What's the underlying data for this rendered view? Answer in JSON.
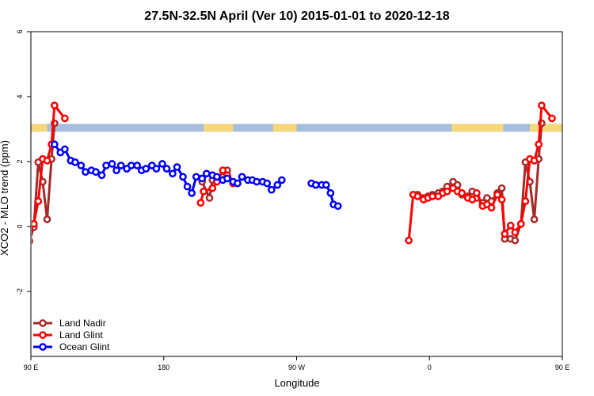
{
  "chart_data": {
    "type": "line",
    "title": "27.5N-32.5N April (Ver 10)   2015-01-01 to 2020-12-18",
    "xlabel": "Longitude",
    "ylabel": "XCO2 - MLO trend (ppm)",
    "xlim": [
      90,
      450
    ],
    "ylim": [
      -4,
      6
    ],
    "x_ticks": [
      {
        "value": 90,
        "label": "90 E"
      },
      {
        "value": 180,
        "label": "180"
      },
      {
        "value": 270,
        "label": "90 W"
      },
      {
        "value": 360,
        "label": "0"
      },
      {
        "value": 450,
        "label": "90 E"
      },
      {
        "value": 540,
        "label": "180"
      }
    ],
    "y_ticks": [
      {
        "value": -2,
        "label": "-2"
      },
      {
        "value": 0,
        "label": "0"
      },
      {
        "value": 2,
        "label": "2"
      },
      {
        "value": 4,
        "label": "4"
      },
      {
        "value": 6,
        "label": "6"
      }
    ],
    "grid": false,
    "legend_position": "bottom-left",
    "land_ocean_strip": {
      "y_range": [
        2.92,
        3.16
      ],
      "ocean_color": "#a5bddc",
      "land_color": "#f5d77c",
      "land_segments": [
        [
          88,
          101
        ],
        [
          207,
          227
        ],
        [
          254,
          270
        ],
        [
          375,
          410
        ],
        [
          428,
          461
        ],
        [
          487,
          506
        ]
      ]
    },
    "series": [
      {
        "name": "Land Nadir",
        "color": "#a52a2a",
        "points": [
          [
            86,
            -0.45
          ],
          [
            89,
            -0.45
          ],
          [
            92,
            -0.02
          ],
          [
            95,
            1.98
          ],
          [
            98,
            1.38
          ],
          [
            101,
            0.22
          ],
          [
            104,
            2.08
          ],
          [
            106,
            3.18
          ],
          [
            206,
            1.38
          ],
          [
            211,
            0.88
          ],
          [
            213,
            1.43
          ],
          [
            216,
            1.43
          ],
          [
            220,
            1.53
          ],
          [
            223,
            1.73
          ],
          [
            227,
            1.33
          ],
          [
            349,
            0.98
          ],
          [
            352,
            0.98
          ],
          [
            356,
            0.88
          ],
          [
            359,
            0.93
          ],
          [
            362,
            0.98
          ],
          [
            366,
            1.03
          ],
          [
            369,
            1.08
          ],
          [
            372,
            1.23
          ],
          [
            376,
            1.38
          ],
          [
            379,
            1.28
          ],
          [
            382,
            0.98
          ],
          [
            386,
            0.93
          ],
          [
            389,
            1.08
          ],
          [
            392,
            0.88
          ],
          [
            396,
            0.73
          ],
          [
            399,
            0.88
          ],
          [
            402,
            0.78
          ],
          [
            406,
            1.03
          ],
          [
            409,
            1.18
          ],
          [
            411,
            -0.38
          ],
          [
            415,
            -0.38
          ],
          [
            418,
            -0.43
          ],
          [
            422,
            0.08
          ],
          [
            425,
            1.98
          ],
          [
            428,
            1.38
          ],
          [
            431,
            0.22
          ],
          [
            434,
            2.08
          ],
          [
            436,
            3.18
          ]
        ]
      },
      {
        "name": "Land Glint",
        "color": "#ff0000",
        "points": [
          [
            86,
            -0.15
          ],
          [
            89,
            -0.05
          ],
          [
            92,
            0.08
          ],
          [
            95,
            0.78
          ],
          [
            98,
            2.08
          ],
          [
            101,
            2.03
          ],
          [
            104,
            2.53
          ],
          [
            106,
            3.73
          ],
          [
            113,
            3.33
          ],
          [
            205,
            0.73
          ],
          [
            207,
            1.08
          ],
          [
            213,
            1.18
          ],
          [
            216,
            1.38
          ],
          [
            220,
            1.73
          ],
          [
            223,
            1.58
          ],
          [
            227,
            1.33
          ],
          [
            346,
            -0.43
          ],
          [
            349,
            0.98
          ],
          [
            352,
            0.93
          ],
          [
            356,
            0.83
          ],
          [
            359,
            0.88
          ],
          [
            362,
            0.93
          ],
          [
            366,
            0.93
          ],
          [
            369,
            1.03
          ],
          [
            372,
            1.08
          ],
          [
            376,
            1.18
          ],
          [
            379,
            1.08
          ],
          [
            382,
            1.03
          ],
          [
            386,
            0.88
          ],
          [
            389,
            0.83
          ],
          [
            392,
            1.03
          ],
          [
            396,
            0.63
          ],
          [
            399,
            0.68
          ],
          [
            402,
            0.58
          ],
          [
            406,
            0.98
          ],
          [
            409,
            0.83
          ],
          [
            411,
            -0.23
          ],
          [
            415,
            0.03
          ],
          [
            418,
            -0.18
          ],
          [
            422,
            0.08
          ],
          [
            425,
            0.78
          ],
          [
            428,
            2.08
          ],
          [
            431,
            2.03
          ],
          [
            434,
            2.53
          ],
          [
            436,
            3.73
          ],
          [
            443,
            3.33
          ]
        ]
      },
      {
        "name": "Ocean Glint",
        "color": "#0000ff",
        "points": [
          [
            106,
            2.53
          ],
          [
            110,
            2.28
          ],
          [
            113,
            2.38
          ],
          [
            117,
            2.03
          ],
          [
            120,
            1.98
          ],
          [
            124,
            1.88
          ],
          [
            127,
            1.68
          ],
          [
            131,
            1.73
          ],
          [
            134,
            1.68
          ],
          [
            138,
            1.58
          ],
          [
            141,
            1.88
          ],
          [
            145,
            1.93
          ],
          [
            148,
            1.73
          ],
          [
            151,
            1.88
          ],
          [
            155,
            1.78
          ],
          [
            158,
            1.88
          ],
          [
            162,
            1.88
          ],
          [
            165,
            1.73
          ],
          [
            168,
            1.78
          ],
          [
            172,
            1.88
          ],
          [
            175,
            1.78
          ],
          [
            179,
            1.93
          ],
          [
            182,
            1.78
          ],
          [
            186,
            1.63
          ],
          [
            189,
            1.83
          ],
          [
            193,
            1.53
          ],
          [
            196,
            1.23
          ],
          [
            199,
            1.03
          ],
          [
            202,
            1.53
          ],
          [
            206,
            1.48
          ],
          [
            209,
            1.63
          ],
          [
            213,
            1.58
          ],
          [
            216,
            1.53
          ],
          [
            220,
            1.43
          ],
          [
            223,
            1.48
          ],
          [
            227,
            1.38
          ],
          [
            230,
            1.33
          ],
          [
            233,
            1.53
          ],
          [
            237,
            1.43
          ],
          [
            240,
            1.43
          ],
          [
            243,
            1.38
          ],
          [
            247,
            1.38
          ],
          [
            250,
            1.33
          ],
          [
            253,
            1.13
          ],
          [
            257,
            1.28
          ],
          [
            260,
            1.43
          ],
          [
            280,
            1.33
          ],
          [
            283,
            1.28
          ],
          [
            287,
            1.28
          ],
          [
            290,
            1.28
          ],
          [
            293,
            1.03
          ],
          [
            295,
            0.68
          ],
          [
            298,
            0.63
          ]
        ]
      }
    ]
  }
}
